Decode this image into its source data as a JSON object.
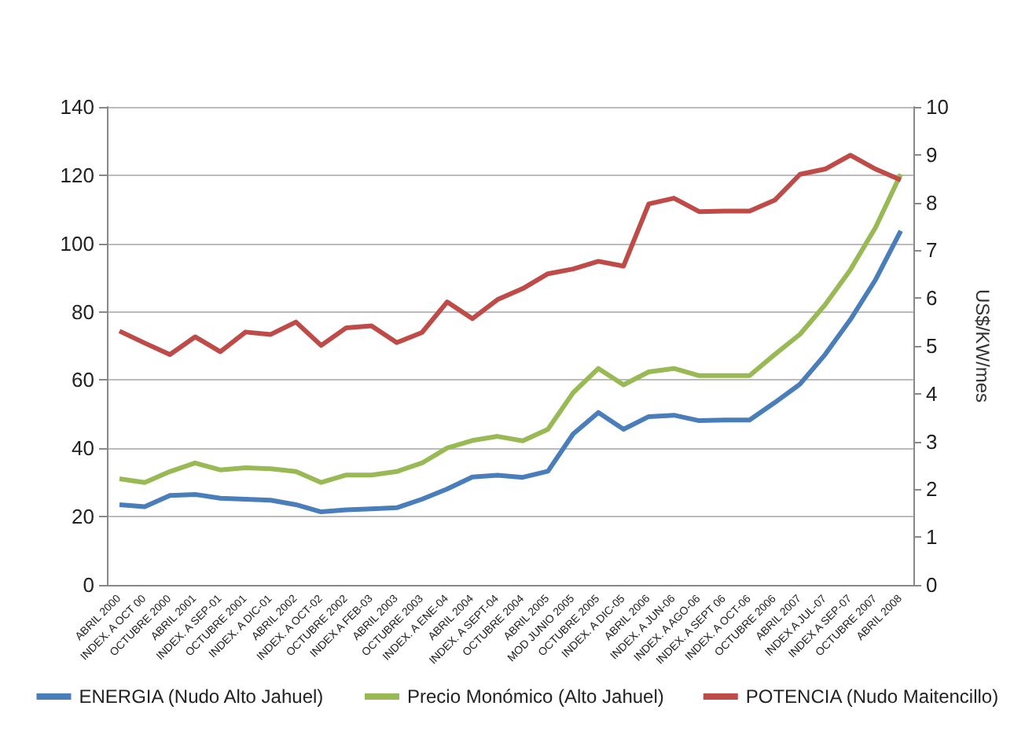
{
  "chart_data": {
    "type": "line",
    "y2label": "US$/KW/mes",
    "categories": [
      "ABRIL 2000",
      "INDEX. A OCT 00",
      "OCTUBRE 2000",
      "ABRIL 2001",
      "INDEX. A SEP-01",
      "OCTUBRE 2001",
      "INDEX. A DIC-01",
      "ABRIL 2002",
      "INDEX. A OCT-02",
      "OCTUBRE 2002",
      "INDEX A FEB-03",
      "ABRIL 2003",
      "OCTUBRE 2003",
      "INDEX. A ENE-04",
      "ABRIL 2004",
      "INDEX. A SEPT-04",
      "OCTUBRE 2004",
      "ABRIL 2005",
      "MOD JUNIO 2005",
      "OCTUBRE 2005",
      "INDEX. A DIC-05",
      "ABRIL 2006",
      "INDEX. A JUN-06",
      "INDEX. A AGO-06",
      "INDEX. A SEPT 06",
      "INDEX. A OCT-06",
      "OCTUBRE 2006",
      "ABRIL 2007",
      "INDEX A JUL-07",
      "INDEX A SEP-07",
      "OCTUBRE 2007",
      "ABRIL 2008"
    ],
    "series": [
      {
        "name": "ENERGIA (Nudo Alto Jahuel)",
        "color": "#4a7ebb",
        "values": [
          23.5,
          22.9,
          26.2,
          26.5,
          25.4,
          25.1,
          24.8,
          23.5,
          21.4,
          22.0,
          22.3,
          22.6,
          25.1,
          28.1,
          31.6,
          32.1,
          31.5,
          33.3,
          44.2,
          50.5,
          45.6,
          49.3,
          49.7,
          48.1,
          48.3,
          48.3,
          53.4,
          58.8,
          67.5,
          77.7,
          89.4,
          103.7
        ]
      },
      {
        "name": "Precio Monómico (Alto Jahuel)",
        "color": "#98b954",
        "values": [
          31.1,
          30.0,
          33.2,
          35.7,
          33.7,
          34.3,
          34.0,
          33.2,
          30.0,
          32.2,
          32.2,
          33.2,
          35.7,
          40.1,
          42.3,
          43.5,
          42.2,
          45.6,
          56.3,
          63.4,
          58.6,
          62.4,
          63.4,
          61.3,
          61.3,
          61.3,
          67.5,
          73.4,
          82.1,
          92.3,
          104.7,
          120.3
        ]
      },
      {
        "name": "POTENCIA (Nudo Maitencillo)",
        "color": "#be4b48",
        "axis": "y2",
        "values": [
          5.31,
          5.06,
          4.82,
          5.19,
          4.88,
          5.29,
          5.24,
          5.5,
          5.01,
          5.38,
          5.42,
          5.07,
          5.28,
          5.92,
          5.57,
          5.97,
          6.2,
          6.51,
          6.61,
          6.77,
          6.67,
          7.97,
          8.09,
          7.81,
          7.82,
          7.82,
          8.05,
          8.59,
          8.7,
          8.99,
          8.7,
          8.47
        ]
      }
    ],
    "ylim": [
      0,
      140
    ],
    "yticks": [
      0,
      20,
      40,
      60,
      80,
      100,
      120,
      140
    ],
    "y2lim": [
      0,
      10
    ],
    "y2ticks": [
      0,
      1,
      2,
      3,
      4,
      5,
      6,
      7,
      8,
      9,
      10
    ],
    "grid": "y",
    "legend": "bottom",
    "marker": "none",
    "line_style": "solid"
  }
}
